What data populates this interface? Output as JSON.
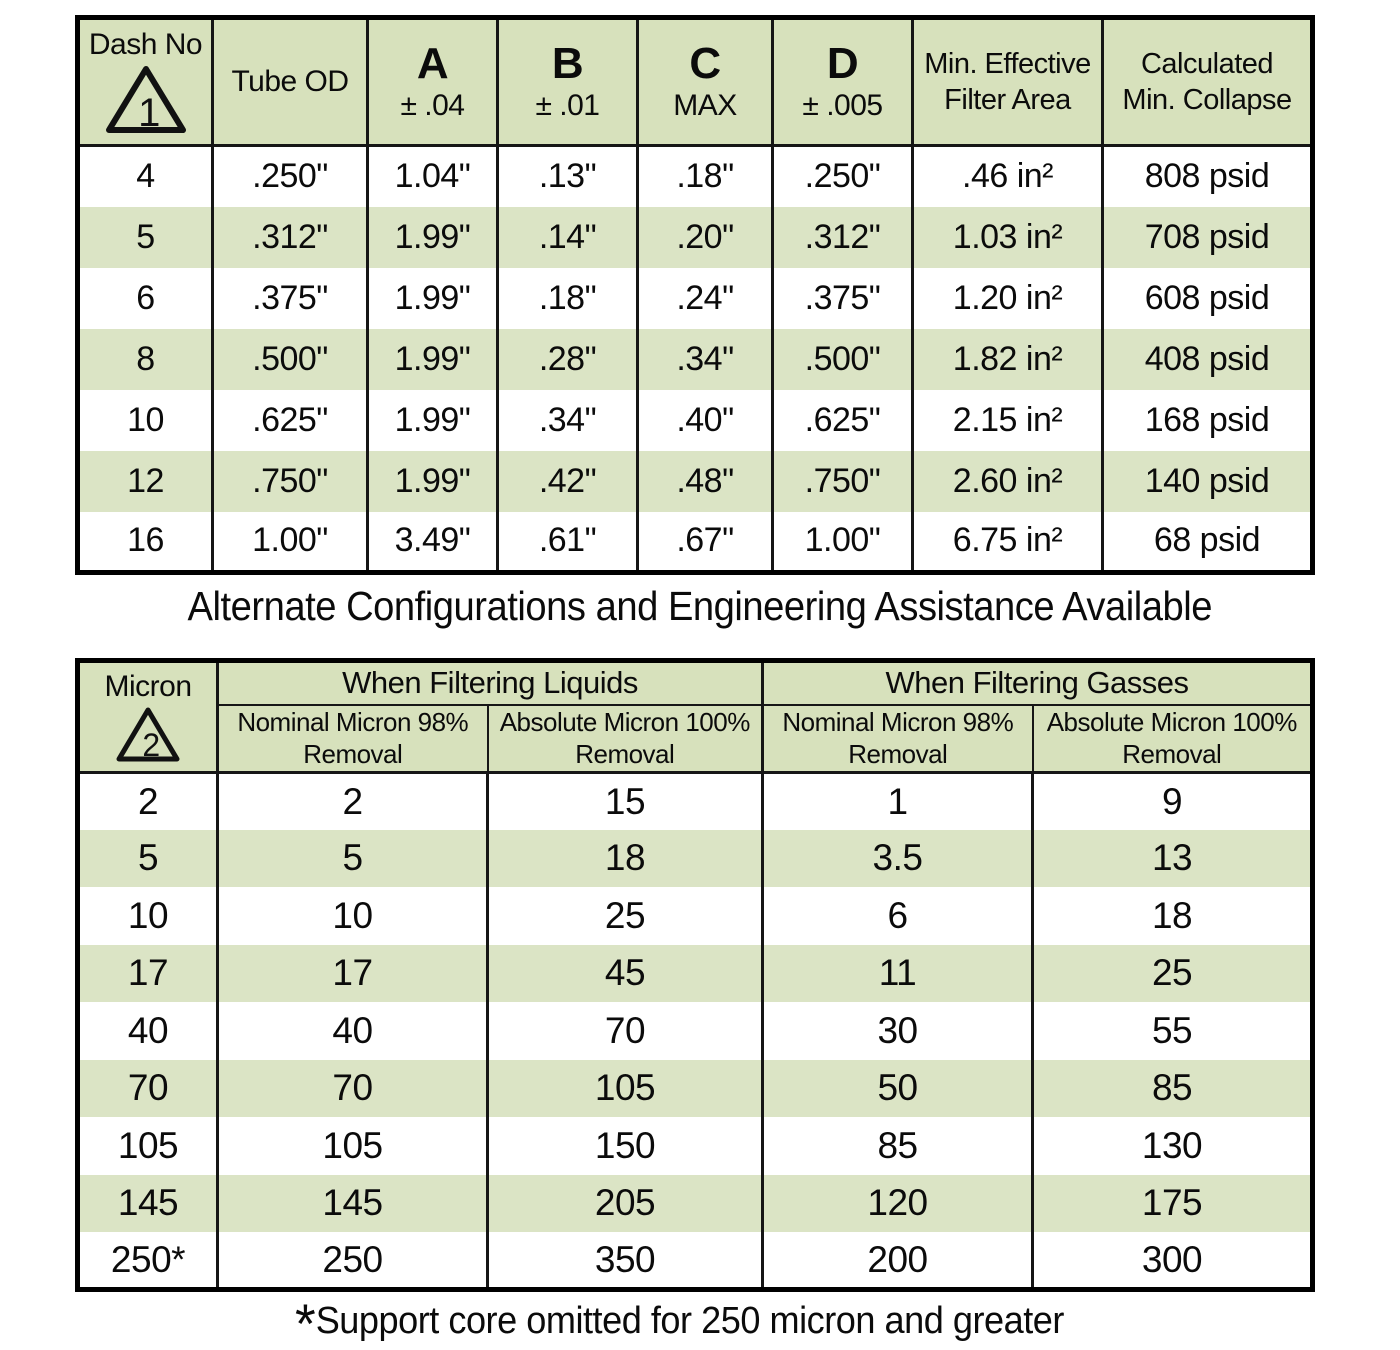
{
  "table1": {
    "header": {
      "dash_label": "Dash No",
      "dash_symbol": "1",
      "tube_od": "Tube OD",
      "col_a": {
        "letter": "A",
        "tol": "± .04"
      },
      "col_b": {
        "letter": "B",
        "tol": "± .01"
      },
      "col_c": {
        "letter": "C",
        "tol": "MAX"
      },
      "col_d": {
        "letter": "D",
        "tol": "± .005"
      },
      "filter_area": {
        "line1": "Min. Effective",
        "line2": "Filter Area"
      },
      "collapse": {
        "line1": "Calculated",
        "line2": "Min. Collapse"
      }
    },
    "rows": [
      [
        "4",
        ".250\"",
        "1.04\"",
        ".13\"",
        ".18\"",
        ".250\"",
        ".46 in²",
        "808 psid"
      ],
      [
        "5",
        ".312\"",
        "1.99\"",
        ".14\"",
        ".20\"",
        ".312\"",
        "1.03 in²",
        "708 psid"
      ],
      [
        "6",
        ".375\"",
        "1.99\"",
        ".18\"",
        ".24\"",
        ".375\"",
        "1.20 in²",
        "608 psid"
      ],
      [
        "8",
        ".500\"",
        "1.99\"",
        ".28\"",
        ".34\"",
        ".500\"",
        "1.82 in²",
        "408 psid"
      ],
      [
        "10",
        ".625\"",
        "1.99\"",
        ".34\"",
        ".40\"",
        ".625\"",
        "2.15 in²",
        "168 psid"
      ],
      [
        "12",
        ".750\"",
        "1.99\"",
        ".42\"",
        ".48\"",
        ".750\"",
        "2.60 in²",
        "140 psid"
      ],
      [
        "16",
        "1.00\"",
        "3.49\"",
        ".61\"",
        ".67\"",
        "1.00\"",
        "6.75 in²",
        "68 psid"
      ]
    ]
  },
  "caption": "Alternate Configurations and Engineering Assistance Available",
  "table2": {
    "header": {
      "micron_label": "Micron",
      "micron_symbol": "2",
      "groups": [
        "When Filtering Liquids",
        "When Filtering Gasses"
      ],
      "subheaders": [
        {
          "line1": "Nominal Micron 98%",
          "line2": "Removal"
        },
        {
          "line1": "Absolute Micron 100%",
          "line2": "Removal"
        },
        {
          "line1": "Nominal Micron 98%",
          "line2": "Removal"
        },
        {
          "line1": "Absolute Micron 100%",
          "line2": "Removal"
        }
      ]
    },
    "rows": [
      [
        "2",
        "2",
        "15",
        "1",
        "9"
      ],
      [
        "5",
        "5",
        "18",
        "3.5",
        "13"
      ],
      [
        "10",
        "10",
        "25",
        "6",
        "18"
      ],
      [
        "17",
        "17",
        "45",
        "11",
        "25"
      ],
      [
        "40",
        "40",
        "70",
        "30",
        "55"
      ],
      [
        "70",
        "70",
        "105",
        "50",
        "85"
      ],
      [
        "105",
        "105",
        "150",
        "85",
        "130"
      ],
      [
        "145",
        "145",
        "205",
        "120",
        "175"
      ],
      [
        "250*",
        "250",
        "350",
        "200",
        "300"
      ]
    ]
  },
  "footnote": {
    "asterisk": "*",
    "text": "Support core omitted for 250 micron and greater"
  },
  "colors": {
    "header_green": "#d7e1bc",
    "stripe_green": "#dbe4c5",
    "border": "#000000",
    "text": "#0b0b0b"
  }
}
